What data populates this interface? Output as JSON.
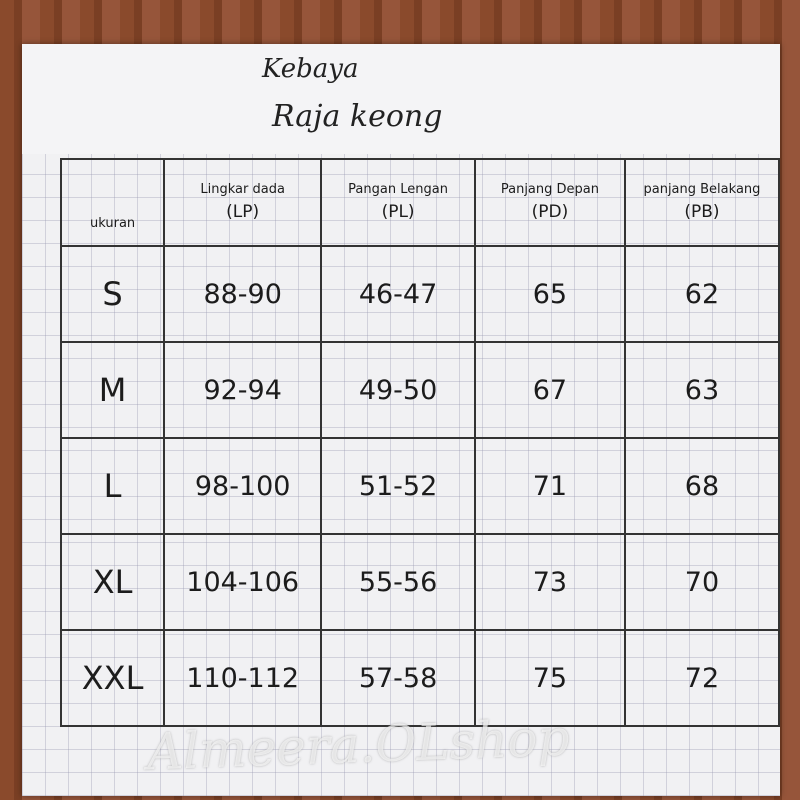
{
  "title_line1": "Kebaya",
  "title_line2": "Raja keong",
  "watermark": "Almeera.OLshop",
  "table": {
    "headers": [
      {
        "label": "ukuran",
        "abbr": ""
      },
      {
        "label": "Lingkar dada",
        "abbr": "(LP)"
      },
      {
        "label": "Pangan Lengan",
        "abbr": "(PL)"
      },
      {
        "label": "Panjang Depan",
        "abbr": "(PD)"
      },
      {
        "label": "panjang Belakang",
        "abbr": "(PB)"
      }
    ],
    "rows": [
      [
        "S",
        "88-90",
        "46-47",
        "65",
        "62"
      ],
      [
        "M",
        "92-94",
        "49-50",
        "67",
        "63"
      ],
      [
        "L",
        "98-100",
        "51-52",
        "71",
        "68"
      ],
      [
        "XL",
        "104-106",
        "55-56",
        "73",
        "70"
      ],
      [
        "XXL",
        "110-112",
        "57-58",
        "75",
        "72"
      ]
    ]
  }
}
